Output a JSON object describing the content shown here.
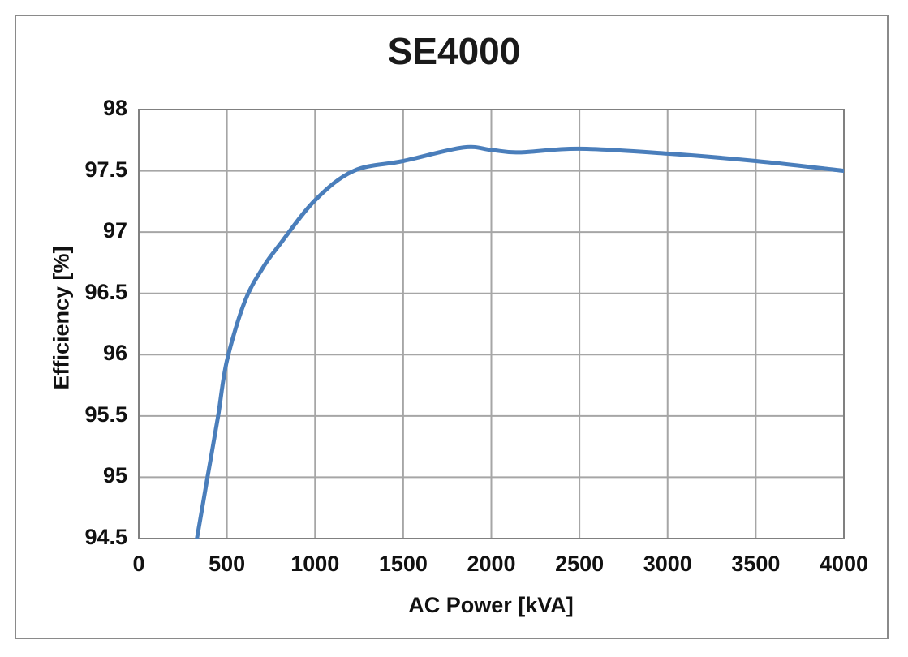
{
  "frame": {
    "background": "#ffffff",
    "border_color": "#8a8a8a"
  },
  "chart_data": {
    "type": "line",
    "title": "SE4000",
    "xlabel": "AC Power [kVA]",
    "ylabel": "Efficiency [%]",
    "xlim": [
      0,
      4000
    ],
    "ylim": [
      94.5,
      98
    ],
    "x_ticks": [
      0,
      500,
      1000,
      1500,
      2000,
      2500,
      3000,
      3500,
      4000
    ],
    "y_ticks": [
      94.5,
      95,
      95.5,
      96,
      96.5,
      97,
      97.5,
      98
    ],
    "grid": true,
    "legend_position": "none",
    "gridline_color": "#a6a6a6",
    "plot_border_color": "#808080",
    "series": [
      {
        "name": "Efficiency",
        "color": "#4a7ebb",
        "line_width": 5,
        "smooth": true,
        "points": [
          [
            330,
            94.5
          ],
          [
            390,
            95.0
          ],
          [
            450,
            95.5
          ],
          [
            500,
            95.95
          ],
          [
            600,
            96.43
          ],
          [
            700,
            96.7
          ],
          [
            800,
            96.9
          ],
          [
            1000,
            97.26
          ],
          [
            1220,
            97.5
          ],
          [
            1500,
            97.58
          ],
          [
            1840,
            97.69
          ],
          [
            2000,
            97.67
          ],
          [
            2160,
            97.65
          ],
          [
            2500,
            97.68
          ],
          [
            3000,
            97.64
          ],
          [
            3500,
            97.58
          ],
          [
            4000,
            97.5
          ]
        ]
      }
    ]
  }
}
